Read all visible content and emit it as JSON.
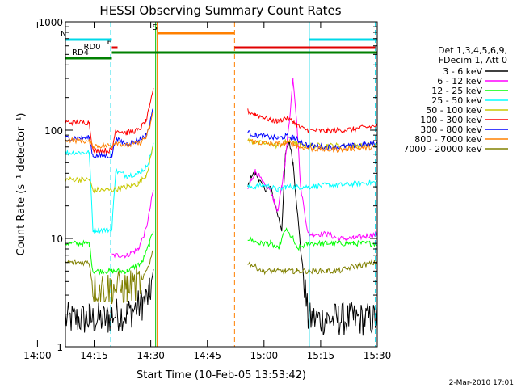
{
  "chart_data": {
    "type": "line",
    "title": "HESSI Observing Summary Count Rates",
    "xlabel": "Start Time (10-Feb-05 13:53:42)",
    "ylabel": "Count Rate (s⁻¹ detector⁻¹)",
    "yscale": "log",
    "ylim": [
      1,
      1000
    ],
    "xlim_minutes": [
      13.7,
      96.3
    ],
    "x_ticks": [
      "14:00",
      "14:15",
      "14:30",
      "14:45",
      "15:00",
      "15:15",
      "15:30"
    ],
    "y_ticks": [
      "1",
      "10",
      "100",
      "1000"
    ],
    "legend_title": [
      "Det 1,3,4,5,6,9,",
      "FDecim 1, Att 0"
    ],
    "legend_position": "right",
    "footer_date": "2-Mar-2010 17:01",
    "flags": [
      {
        "label": "RD4",
        "color": "#008000",
        "start": 13.7,
        "end": 26.0
      },
      {
        "label": "RD0",
        "color": "#008000",
        "start": 26.0,
        "end": 96.3
      },
      {
        "label": "F",
        "color": "#e00000",
        "start": 26.0,
        "end": 27.5
      },
      {
        "label": "N",
        "color": "#00d8e8",
        "start": 13.7,
        "end": 26.0
      },
      {
        "label": "S",
        "color": "#ff8000",
        "start": 38.0,
        "end": 58.5
      }
    ],
    "series": [
      {
        "name": "3 - 6 keV",
        "color": "#000000",
        "x": [
          13.7,
          20,
          25,
          26,
          30,
          34,
          36,
          37,
          62,
          63,
          64,
          65,
          66,
          67,
          68,
          71,
          72,
          73,
          74,
          75,
          76,
          78,
          83,
          86,
          90,
          96.3
        ],
        "y": [
          1.8,
          1.8,
          1.8,
          2,
          2,
          2.5,
          3,
          5,
          30,
          38,
          40,
          35,
          30,
          28,
          30,
          12,
          60,
          80,
          50,
          20,
          8,
          1.8,
          1.8,
          1.8,
          1.8,
          1.8
        ]
      },
      {
        "name": "6 - 12 keV",
        "color": "#ff00ff",
        "x": [
          26,
          30,
          33,
          35,
          36,
          37,
          62,
          63,
          64,
          65,
          66,
          67,
          68,
          69,
          70,
          71,
          72,
          73,
          74,
          75,
          76,
          78,
          83,
          86,
          90,
          96.3
        ],
        "y": [
          7,
          7,
          8,
          12,
          18,
          28,
          28,
          35,
          42,
          38,
          32,
          30,
          28,
          22,
          18,
          30,
          55,
          120,
          300,
          120,
          30,
          11,
          11,
          10,
          10,
          11
        ]
      },
      {
        "name": "12 - 25 keV",
        "color": "#00ff00",
        "x": [
          13.7,
          20,
          21,
          26,
          30,
          34,
          36,
          37,
          62,
          65,
          68,
          70,
          72,
          74,
          75,
          78,
          83,
          86,
          90,
          96.3
        ],
        "y": [
          9,
          9,
          5,
          5,
          5,
          6,
          9,
          12,
          10,
          9,
          9,
          8,
          12,
          10,
          8,
          9,
          9,
          9,
          9,
          9
        ]
      },
      {
        "name": "25 - 50 keV",
        "color": "#00ffff",
        "x": [
          13.7,
          18,
          20,
          21,
          26,
          27,
          30,
          33,
          35,
          36,
          37,
          62,
          64,
          66,
          68,
          70,
          72,
          74,
          75,
          76,
          78,
          83,
          86,
          90,
          96.3
        ],
        "y": [
          62,
          62,
          62,
          12,
          12,
          42,
          38,
          40,
          45,
          55,
          75,
          30,
          30,
          31,
          30,
          28,
          30,
          30,
          30,
          30,
          30,
          31,
          31,
          32,
          33
        ]
      },
      {
        "name": "50 - 100 keV",
        "color": "#c8c800",
        "x": [
          13.7,
          18,
          20,
          21,
          26,
          30,
          33,
          35,
          36,
          37,
          62,
          64,
          66,
          68,
          70,
          72,
          74,
          75,
          76,
          78,
          83,
          86,
          90,
          96.3
        ],
        "y": [
          35,
          35,
          35,
          28,
          28,
          30,
          32,
          38,
          50,
          75,
          80,
          78,
          75,
          74,
          72,
          78,
          80,
          75,
          72,
          72,
          72,
          72,
          72,
          74
        ]
      },
      {
        "name": "100 - 300 keV",
        "color": "#ff0000",
        "x": [
          13.7,
          18,
          20,
          21,
          26,
          27,
          30,
          33,
          35,
          36,
          37,
          62,
          64,
          66,
          68,
          70,
          72,
          74,
          75,
          76,
          78,
          83,
          86,
          90,
          96.3
        ],
        "y": [
          118,
          118,
          118,
          65,
          65,
          100,
          95,
          100,
          120,
          160,
          250,
          150,
          140,
          132,
          125,
          120,
          130,
          120,
          112,
          105,
          100,
          98,
          100,
          102,
          110
        ]
      },
      {
        "name": "300 - 800 keV",
        "color": "#0000ff",
        "x": [
          13.7,
          18,
          20,
          21,
          26,
          27,
          30,
          33,
          35,
          36,
          37,
          62,
          64,
          66,
          68,
          70,
          72,
          74,
          75,
          76,
          78,
          83,
          86,
          90,
          96.3
        ],
        "y": [
          85,
          85,
          85,
          58,
          58,
          82,
          75,
          80,
          90,
          110,
          170,
          95,
          90,
          88,
          86,
          84,
          88,
          86,
          82,
          78,
          72,
          70,
          70,
          72,
          75
        ]
      },
      {
        "name": "800 - 7000 keV",
        "color": "#ff8000",
        "x": [
          13.7,
          18,
          20,
          21,
          26,
          27,
          30,
          33,
          35,
          36,
          37,
          62,
          64,
          66,
          68,
          70,
          72,
          74,
          75,
          76,
          78,
          83,
          86,
          90,
          96.3
        ],
        "y": [
          82,
          80,
          78,
          72,
          72,
          78,
          72,
          75,
          85,
          105,
          150,
          80,
          78,
          76,
          75,
          74,
          76,
          75,
          72,
          70,
          68,
          66,
          66,
          68,
          70
        ]
      },
      {
        "name": "7000 - 20000 keV",
        "color": "#808000",
        "x": [
          13.7,
          20,
          21,
          26,
          30,
          34,
          36,
          37,
          62,
          66,
          68,
          70,
          72,
          74,
          75,
          78,
          83,
          86,
          90,
          96.3
        ],
        "y": [
          6,
          6,
          3.5,
          3.5,
          3.5,
          4,
          6,
          8,
          6,
          5,
          5,
          5,
          5,
          5,
          5,
          5,
          5,
          5,
          5.5,
          6
        ]
      }
    ],
    "markers": [
      {
        "x": 25.7,
        "color": "#00d8e8",
        "dash": true
      },
      {
        "x": 37.6,
        "color": "#00c000",
        "dash": false
      },
      {
        "x": 38.0,
        "color": "#ff8000",
        "dash": false
      },
      {
        "x": 58.5,
        "color": "#ff8000",
        "dash": true
      },
      {
        "x": 78.3,
        "color": "#00d8e8",
        "dash": false
      },
      {
        "x": 95.8,
        "color": "#00d8e8",
        "dash": true
      }
    ]
  }
}
